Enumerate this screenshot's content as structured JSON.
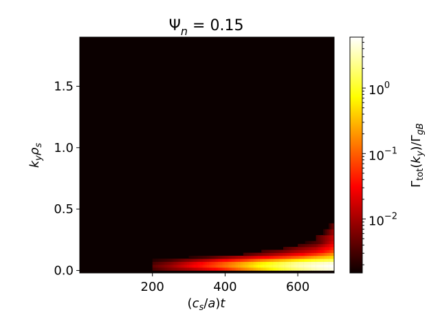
{
  "chart_data": {
    "type": "heatmap",
    "title": "Ψ_n = 0.15",
    "xlabel": "(c_s/a)t",
    "ylabel": "k_y ρ_s",
    "colorbar_label": "Γ_tot(k_y)/Γ_gB",
    "colormap": "hot",
    "color_scale": "log",
    "clim": [
      0.0015,
      6.0
    ],
    "xlim": [
      0,
      700
    ],
    "ylim": [
      -0.02,
      1.9
    ],
    "x_ticks": [
      200,
      400,
      600
    ],
    "x_tick_labels": [
      "200",
      "400",
      "600"
    ],
    "y_ticks": [
      0.0,
      0.5,
      1.0,
      1.5
    ],
    "y_tick_labels": [
      "0.0",
      "0.5",
      "1.0",
      "1.5"
    ],
    "colorbar_ticks": [
      0.01,
      0.1,
      1.0
    ],
    "colorbar_tick_labels": [
      "10^-2",
      "10^-1",
      "10^0"
    ],
    "background_value": 0.0015,
    "grid": false,
    "series": [
      {
        "ky": 0.0,
        "points": [
          [
            200,
            0.003
          ],
          [
            250,
            0.006
          ],
          [
            300,
            0.01
          ],
          [
            350,
            0.02
          ],
          [
            400,
            0.05
          ],
          [
            450,
            0.15
          ],
          [
            500,
            0.4
          ],
          [
            550,
            1.0
          ],
          [
            600,
            2.0
          ],
          [
            650,
            3.5
          ],
          [
            700,
            5.0
          ]
        ]
      },
      {
        "ky": 0.024,
        "points": [
          [
            200,
            0.004
          ],
          [
            250,
            0.008
          ],
          [
            300,
            0.02
          ],
          [
            350,
            0.05
          ],
          [
            400,
            0.12
          ],
          [
            450,
            0.3
          ],
          [
            500,
            0.8
          ],
          [
            550,
            1.5
          ],
          [
            600,
            3.0
          ],
          [
            650,
            4.5
          ],
          [
            700,
            6.0
          ]
        ]
      },
      {
        "ky": 0.048,
        "points": [
          [
            200,
            0.003
          ],
          [
            250,
            0.006
          ],
          [
            300,
            0.015
          ],
          [
            350,
            0.04
          ],
          [
            400,
            0.1
          ],
          [
            450,
            0.25
          ],
          [
            500,
            0.6
          ],
          [
            550,
            1.2
          ],
          [
            600,
            2.5
          ],
          [
            650,
            3.5
          ],
          [
            700,
            4.5
          ]
        ]
      },
      {
        "ky": 0.072,
        "points": [
          [
            200,
            0.002
          ],
          [
            250,
            0.003
          ],
          [
            300,
            0.006
          ],
          [
            350,
            0.012
          ],
          [
            400,
            0.03
          ],
          [
            450,
            0.06
          ],
          [
            500,
            0.15
          ],
          [
            550,
            0.3
          ],
          [
            600,
            0.6
          ],
          [
            650,
            1.0
          ],
          [
            700,
            1.5
          ]
        ]
      },
      {
        "ky": 0.096,
        "points": [
          [
            300,
            0.002
          ],
          [
            350,
            0.003
          ],
          [
            400,
            0.006
          ],
          [
            450,
            0.012
          ],
          [
            500,
            0.025
          ],
          [
            550,
            0.05
          ],
          [
            600,
            0.1
          ],
          [
            650,
            0.25
          ],
          [
            700,
            0.5
          ]
        ]
      },
      {
        "ky": 0.12,
        "points": [
          [
            450,
            0.003
          ],
          [
            500,
            0.006
          ],
          [
            550,
            0.012
          ],
          [
            600,
            0.025
          ],
          [
            650,
            0.06
          ],
          [
            700,
            0.2
          ]
        ]
      },
      {
        "ky": 0.144,
        "points": [
          [
            500,
            0.003
          ],
          [
            550,
            0.005
          ],
          [
            600,
            0.01
          ],
          [
            650,
            0.02
          ],
          [
            700,
            0.08
          ]
        ]
      },
      {
        "ky": 0.168,
        "points": [
          [
            560,
            0.003
          ],
          [
            600,
            0.006
          ],
          [
            650,
            0.012
          ],
          [
            700,
            0.05
          ]
        ]
      },
      {
        "ky": 0.192,
        "points": [
          [
            600,
            0.003
          ],
          [
            650,
            0.006
          ],
          [
            700,
            0.03
          ]
        ]
      },
      {
        "ky": 0.216,
        "points": [
          [
            620,
            0.002
          ],
          [
            660,
            0.004
          ],
          [
            700,
            0.02
          ]
        ]
      },
      {
        "ky": 0.24,
        "points": [
          [
            650,
            0.003
          ],
          [
            700,
            0.015
          ]
        ]
      },
      {
        "ky": 0.288,
        "points": [
          [
            670,
            0.002
          ],
          [
            700,
            0.01
          ]
        ]
      },
      {
        "ky": 0.336,
        "points": [
          [
            685,
            0.002
          ],
          [
            700,
            0.006
          ]
        ]
      },
      {
        "ky": 0.384,
        "points": [
          [
            700,
            0.004
          ]
        ]
      }
    ]
  }
}
